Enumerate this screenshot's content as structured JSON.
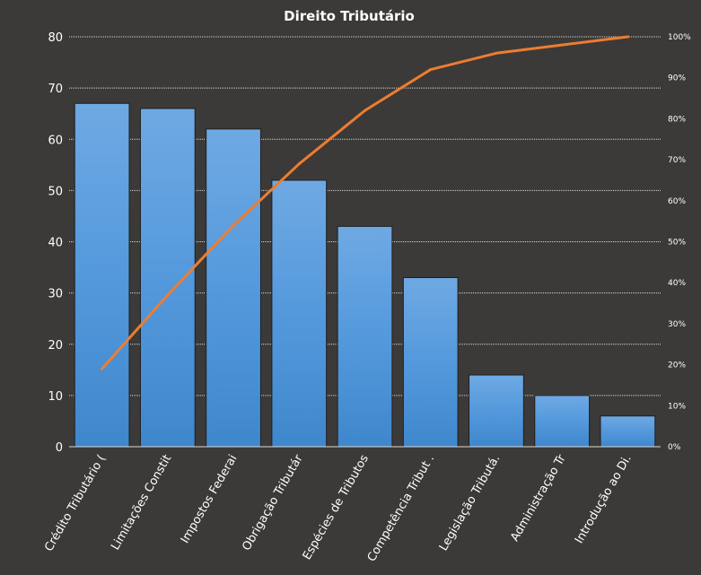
{
  "chart_data": {
    "type": "bar",
    "title": "Direito  Tributário",
    "categories": [
      "Crédito Tributário (",
      "Limitações Constit",
      "Impostos Federai",
      "Obrigação Tributár",
      "Espécies de Tributos",
      "Competência Tribut .",
      "Legislação Tributá.",
      "Administração Tr",
      "Introdução ao Di."
    ],
    "series": [
      {
        "type": "bar",
        "values": [
          67,
          66,
          62,
          52,
          43,
          33,
          14,
          10,
          6
        ],
        "color": "#5b9bd5"
      },
      {
        "type": "line",
        "axis": "secondary",
        "values": [
          0.19,
          0.37,
          0.54,
          0.69,
          0.82,
          0.92,
          0.96,
          0.98,
          1.0
        ],
        "color": "#ed7d31"
      }
    ],
    "ylim": [
      0,
      80
    ],
    "yticks": [
      "0",
      "10",
      "20",
      "30",
      "40",
      "50",
      "60",
      "70",
      "80"
    ],
    "y2lim": [
      0,
      1
    ],
    "y2ticks": [
      "0%",
      "10%",
      "20%",
      "30%",
      "40%",
      "50%",
      "60%",
      "70%",
      "80%",
      "90%",
      "100%"
    ],
    "grid": "horizontal dotted",
    "legend": "none",
    "colors": {
      "background": "#3b3a38",
      "grid": "#d9d9d9",
      "text": "#ffffff"
    }
  }
}
